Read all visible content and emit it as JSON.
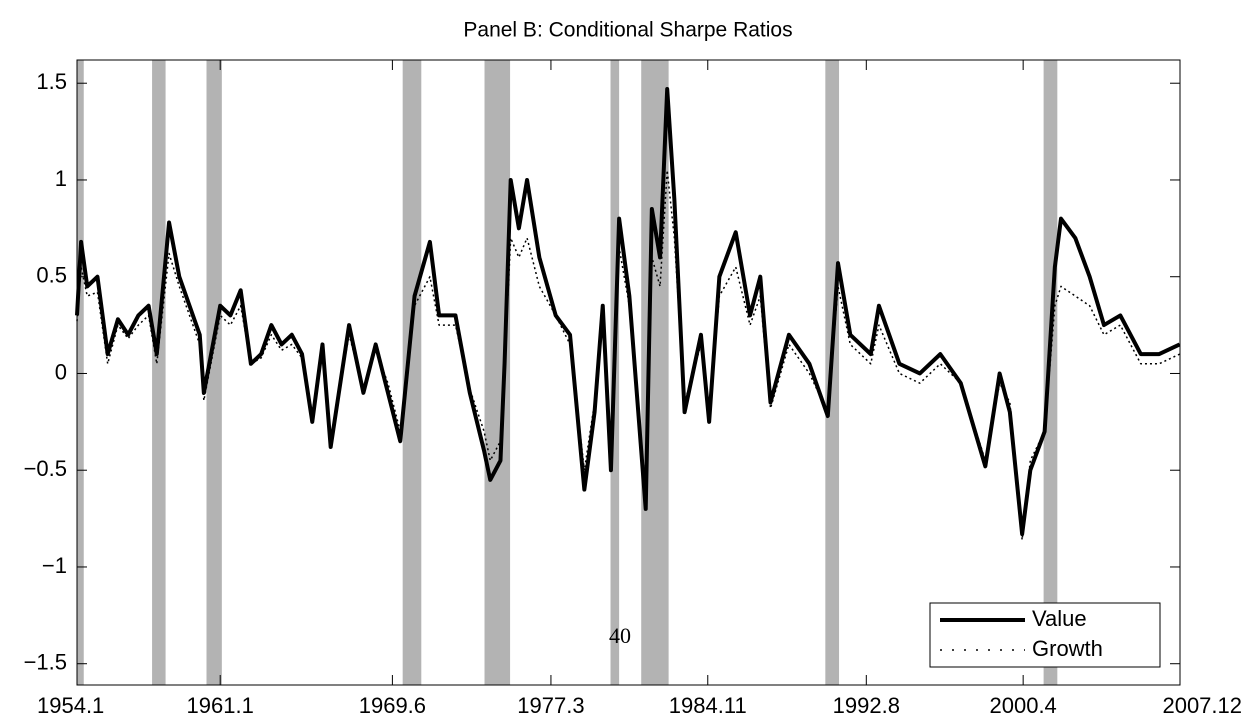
{
  "chart_data": {
    "type": "line",
    "title": "Panel B: Conditional Sharpe Ratios",
    "annotation": "40",
    "x": [
      1954.0,
      1954.2,
      1954.5,
      1955.0,
      1955.5,
      1956.0,
      1956.5,
      1957.0,
      1957.5,
      1957.9,
      1958.5,
      1959.0,
      1959.5,
      1960.0,
      1960.2,
      1961.0,
      1961.5,
      1962.0,
      1962.5,
      1963.0,
      1963.5,
      1964.0,
      1964.5,
      1965.0,
      1965.5,
      1966.0,
      1966.4,
      1967.3,
      1968.0,
      1968.6,
      1969.2,
      1969.8,
      1970.5,
      1971.25,
      1971.7,
      1972.5,
      1973.2,
      1973.9,
      1974.2,
      1974.7,
      1974.9,
      1975.2,
      1975.6,
      1976.0,
      1976.6,
      1977.4,
      1978.1,
      1978.8,
      1979.3,
      1979.7,
      1980.1,
      1980.5,
      1981.0,
      1981.8,
      1982.1,
      1982.5,
      1982.85,
      1983.2,
      1983.7,
      1984.5,
      1984.9,
      1985.4,
      1986.2,
      1986.9,
      1987.4,
      1987.9,
      1988.8,
      1989.8,
      1990.7,
      1991.2,
      1991.8,
      1992.8,
      1993.2,
      1994.2,
      1995.2,
      1996.2,
      1997.2,
      1998.4,
      1999.1,
      1999.6,
      2000.2,
      2000.6,
      2001.3,
      2001.8,
      2002.1,
      2002.8,
      2003.5,
      2004.2,
      2005.0,
      2006.0,
      2006.9,
      2007.9
    ],
    "series": [
      {
        "name": "Value",
        "color": "#000000",
        "style": "solid",
        "values": [
          0.3,
          0.68,
          0.45,
          0.5,
          0.1,
          0.28,
          0.2,
          0.3,
          0.35,
          0.1,
          0.78,
          0.5,
          0.35,
          0.2,
          -0.1,
          0.35,
          0.3,
          0.43,
          0.05,
          0.1,
          0.25,
          0.15,
          0.2,
          0.1,
          -0.25,
          0.15,
          -0.38,
          0.25,
          -0.1,
          0.15,
          -0.1,
          -0.35,
          0.4,
          0.68,
          0.3,
          0.3,
          -0.1,
          -0.4,
          -0.55,
          -0.45,
          0.05,
          1.0,
          0.75,
          1.0,
          0.6,
          0.3,
          0.2,
          -0.6,
          -0.2,
          0.35,
          -0.5,
          0.8,
          0.4,
          -0.7,
          0.85,
          0.6,
          1.47,
          0.9,
          -0.2,
          0.2,
          -0.25,
          0.5,
          0.73,
          0.3,
          0.5,
          -0.15,
          0.2,
          0.05,
          -0.22,
          0.57,
          0.2,
          0.1,
          0.35,
          0.05,
          0.0,
          0.1,
          -0.05,
          -0.48,
          0.0,
          -0.2,
          -0.83,
          -0.5,
          -0.3,
          0.55,
          0.8,
          0.7,
          0.5,
          0.25,
          0.3,
          0.1,
          0.1,
          0.15
        ]
      },
      {
        "name": "Growth",
        "color": "#000000",
        "style": "dotted",
        "values": [
          0.27,
          0.55,
          0.4,
          0.42,
          0.05,
          0.25,
          0.18,
          0.25,
          0.3,
          0.05,
          0.62,
          0.45,
          0.3,
          0.15,
          -0.14,
          0.3,
          0.25,
          0.35,
          0.05,
          0.08,
          0.2,
          0.12,
          0.15,
          0.08,
          -0.2,
          0.12,
          -0.35,
          0.2,
          -0.08,
          0.12,
          -0.05,
          -0.3,
          0.35,
          0.5,
          0.25,
          0.25,
          -0.08,
          -0.3,
          -0.45,
          -0.35,
          0.05,
          0.7,
          0.6,
          0.7,
          0.45,
          0.3,
          0.15,
          -0.5,
          -0.15,
          0.3,
          -0.45,
          0.65,
          0.35,
          -0.6,
          0.6,
          0.45,
          1.05,
          0.7,
          -0.15,
          0.15,
          -0.2,
          0.4,
          0.55,
          0.25,
          0.4,
          -0.18,
          0.15,
          0.0,
          -0.2,
          0.45,
          0.15,
          0.05,
          0.25,
          0.0,
          -0.05,
          0.05,
          -0.05,
          -0.45,
          -0.05,
          -0.15,
          -0.86,
          -0.45,
          -0.3,
          0.35,
          0.45,
          0.4,
          0.35,
          0.2,
          0.25,
          0.05,
          0.05,
          0.1
        ]
      }
    ],
    "shaded_periods": [
      [
        1954.0,
        1954.33
      ],
      [
        1957.67,
        1958.33
      ],
      [
        1960.33,
        1961.08
      ],
      [
        1969.92,
        1970.83
      ],
      [
        1973.92,
        1975.17
      ],
      [
        1980.08,
        1980.5
      ],
      [
        1981.58,
        1982.92
      ],
      [
        1990.58,
        1991.25
      ],
      [
        2001.25,
        2001.92
      ]
    ],
    "shade_color": "#b3b3b3",
    "xlim": [
      1954.0,
      2007.917
    ],
    "xticks": [
      {
        "value": 1954.0,
        "label": "1954.1"
      },
      {
        "value": 1961.0,
        "label": "1961.1"
      },
      {
        "value": 1969.417,
        "label": "1969.6"
      },
      {
        "value": 1977.167,
        "label": "1977.3"
      },
      {
        "value": 1984.833,
        "label": "1984.11"
      },
      {
        "value": 1992.583,
        "label": "1992.8"
      },
      {
        "value": 2000.25,
        "label": "2000.4"
      },
      {
        "value": 2007.917,
        "label": "2007.12"
      }
    ],
    "ylim": [
      -1.61,
      1.62
    ],
    "yticks": [
      {
        "value": -1.5,
        "label": "−1.5"
      },
      {
        "value": -1,
        "label": "−1"
      },
      {
        "value": -0.5,
        "label": "−0.5"
      },
      0,
      0.5,
      1,
      1.5
    ],
    "grid": false,
    "legend": "lower right"
  }
}
